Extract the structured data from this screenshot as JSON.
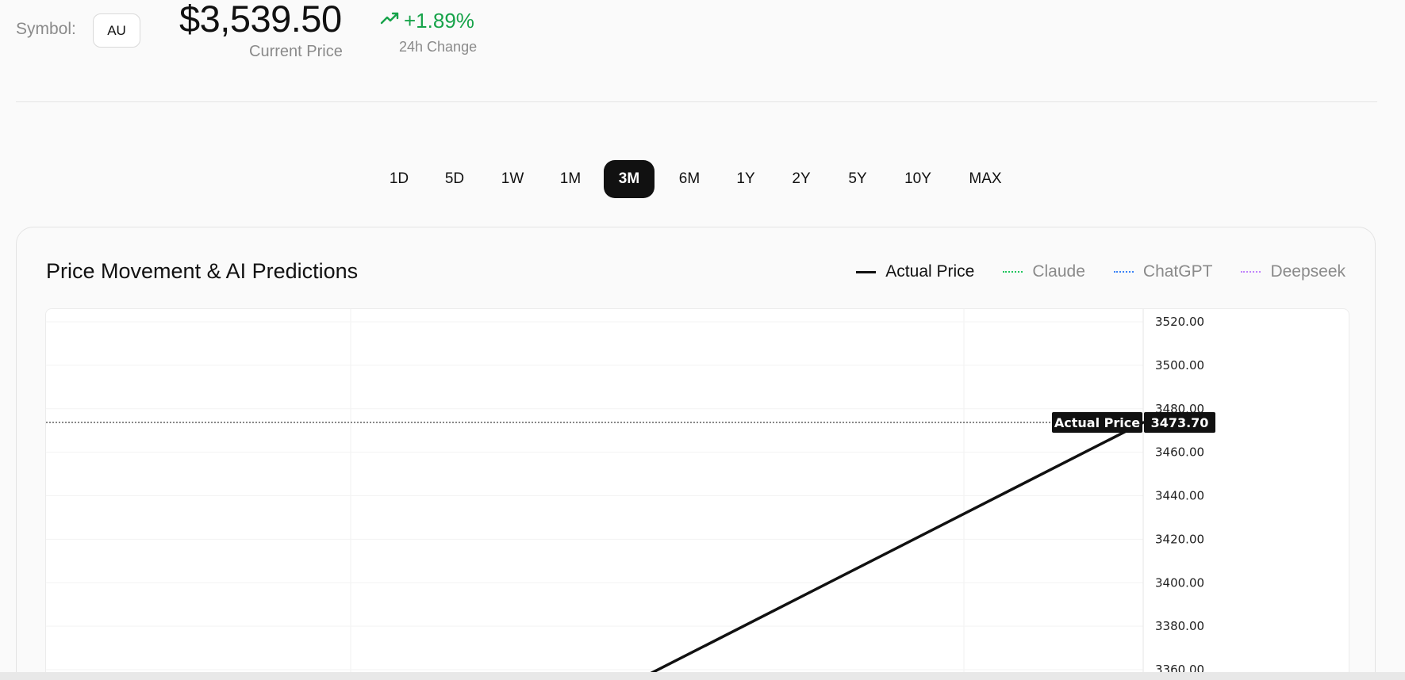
{
  "header": {
    "symbol_label": "Symbol:",
    "symbol_value": "AU",
    "price": "$3,539.50",
    "price_caption": "Current Price",
    "change": "+1.89%",
    "change_caption": "24h Change",
    "change_icon": "trending-up-icon",
    "change_color": "#17a34a"
  },
  "range_tabs": {
    "items": [
      "1D",
      "5D",
      "1W",
      "1M",
      "3M",
      "6M",
      "1Y",
      "2Y",
      "5Y",
      "10Y",
      "MAX"
    ],
    "active": "3M"
  },
  "card": {
    "title": "Price Movement & AI Predictions",
    "legend": [
      {
        "label": "Actual Price",
        "color": "#111111",
        "style": "solid"
      },
      {
        "label": "Claude",
        "color": "#22c55e",
        "style": "dotted"
      },
      {
        "label": "ChatGPT",
        "color": "#3b82f6",
        "style": "dotted"
      },
      {
        "label": "Deepseek",
        "color": "#c084fc",
        "style": "dotted"
      }
    ]
  },
  "chart_data": {
    "type": "line",
    "title": "Price Movement & AI Predictions",
    "xlabel": "",
    "ylabel": "",
    "y_ticks": [
      "3520.00",
      "3500.00",
      "3480.00",
      "3460.00",
      "3440.00",
      "3420.00",
      "3400.00",
      "3380.00",
      "3360.00"
    ],
    "ylim": [
      3354,
      3523
    ],
    "grid": true,
    "legend_position": "top-right",
    "series": [
      {
        "name": "Actual Price",
        "color": "#111111",
        "points": [
          {
            "x": 0.55,
            "y": 3358.0
          },
          {
            "x": 1.0,
            "y": 3473.7
          }
        ]
      }
    ],
    "price_marker": {
      "label": "Actual Price",
      "value": "3473.70",
      "y": 3473.7
    }
  }
}
